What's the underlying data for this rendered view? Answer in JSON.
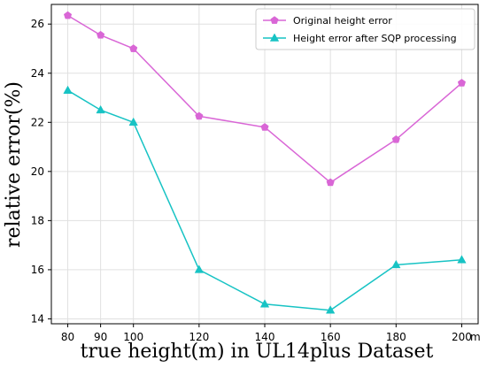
{
  "chart_data": {
    "type": "line",
    "xlabel": "true height(m) in UL14plus Dataset",
    "ylabel": "relative error(%)",
    "x_unit": "m",
    "x": [
      80,
      90,
      100,
      120,
      140,
      160,
      180,
      200
    ],
    "xlim": [
      75,
      205
    ],
    "ylim": [
      13.8,
      26.8
    ],
    "x_ticks": [
      80,
      90,
      100,
      120,
      140,
      160,
      180,
      200
    ],
    "y_ticks": [
      14,
      16,
      18,
      20,
      22,
      24,
      26
    ],
    "grid": true,
    "legend_position": "top-right",
    "series": [
      {
        "name": "Original height error",
        "color": "#d966d6",
        "marker": "pentagon",
        "values": [
          26.35,
          25.55,
          25.0,
          22.25,
          21.8,
          19.55,
          21.3,
          23.6
        ]
      },
      {
        "name": "Height error after SQP processing",
        "color": "#17c3c4",
        "marker": "triangle",
        "values": [
          23.3,
          22.5,
          22.0,
          16.0,
          14.6,
          14.35,
          16.2,
          16.4
        ]
      }
    ]
  }
}
